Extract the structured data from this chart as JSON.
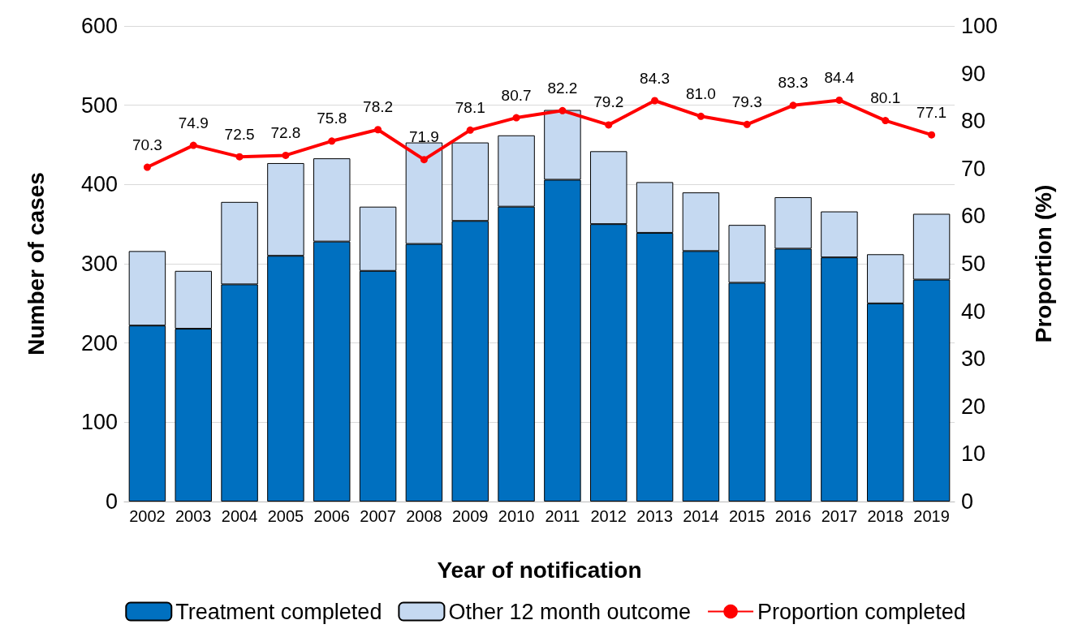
{
  "chart_data": {
    "type": "bar",
    "stacked": true,
    "xlabel": "Year of notification",
    "ylabel": "Number of cases",
    "y2label": "Proportion (%)",
    "categories": [
      "2002",
      "2003",
      "2004",
      "2005",
      "2006",
      "2007",
      "2008",
      "2009",
      "2010",
      "2011",
      "2012",
      "2013",
      "2014",
      "2015",
      "2016",
      "2017",
      "2018",
      "2019"
    ],
    "series": [
      {
        "name": "Treatment completed",
        "color": "#0070c0",
        "values": [
          222,
          218,
          274,
          310,
          328,
          291,
          325,
          354,
          372,
          406,
          350,
          339,
          316,
          276,
          319,
          308,
          250,
          280
        ]
      },
      {
        "name": "Other 12 month outcome",
        "color": "#c5d9f1",
        "values": [
          94,
          73,
          104,
          117,
          105,
          81,
          128,
          99,
          90,
          88,
          92,
          64,
          74,
          73,
          65,
          58,
          62,
          83
        ]
      },
      {
        "name": "Proportion completed",
        "type": "line",
        "axis": "y2",
        "color": "#ff0000",
        "marker": "circle",
        "values": [
          70.3,
          74.9,
          72.5,
          72.8,
          75.8,
          78.2,
          71.9,
          78.1,
          80.7,
          82.2,
          79.2,
          84.3,
          81.0,
          79.3,
          83.3,
          84.4,
          80.1,
          77.1
        ],
        "value_labels": [
          "70.3",
          "74.9",
          "72.5",
          "72.8",
          "75.8",
          "78.2",
          "71.9",
          "78.1",
          "80.7",
          "82.2",
          "79.2",
          "84.3",
          "81.0",
          "79.3",
          "83.3",
          "84.4",
          "80.1",
          "77.1"
        ]
      }
    ],
    "ylim": [
      0,
      600
    ],
    "yticks": [
      0,
      100,
      200,
      300,
      400,
      500,
      600
    ],
    "y2lim": [
      0,
      100
    ],
    "y2ticks": [
      0,
      10,
      20,
      30,
      40,
      50,
      60,
      70,
      80,
      90,
      100
    ],
    "grid": "y",
    "legend": "bottom"
  }
}
